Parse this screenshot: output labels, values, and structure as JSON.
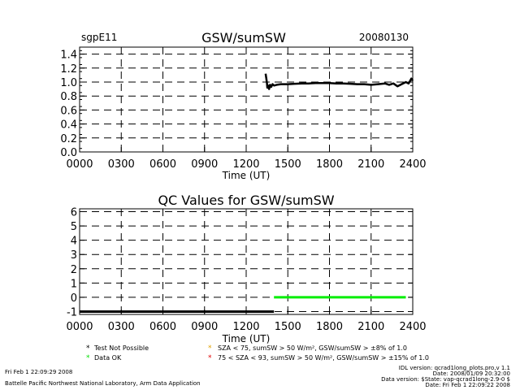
{
  "header": {
    "site": "sgpE11",
    "title": "GSW/sumSW",
    "date": "20080130"
  },
  "chart_data": [
    {
      "type": "line",
      "title": "GSW/sumSW",
      "xlabel": "Time (UT)",
      "ylabel": "",
      "xlim": [
        0,
        2400
      ],
      "ylim": [
        0.0,
        1.5
      ],
      "x_ticks": [
        "0000",
        "0300",
        "0600",
        "0900",
        "1200",
        "1500",
        "1800",
        "2100",
        "2400"
      ],
      "y_ticks": [
        "0.0",
        "0.2",
        "0.4",
        "0.6",
        "0.8",
        "1.0",
        "1.2",
        "1.4"
      ],
      "grid": true,
      "series": [
        {
          "color": "#000000",
          "points": [
            [
              1340,
              1.12
            ],
            [
              1345,
              1.05
            ],
            [
              1350,
              0.98
            ],
            [
              1352,
              0.92
            ],
            [
              1358,
              0.95
            ],
            [
              1365,
              0.9
            ],
            [
              1372,
              0.96
            ],
            [
              1380,
              0.93
            ],
            [
              1390,
              0.97
            ],
            [
              1400,
              0.95
            ],
            [
              1420,
              0.96
            ],
            [
              1450,
              0.97
            ],
            [
              1500,
              0.97
            ],
            [
              1550,
              0.975
            ],
            [
              1600,
              0.98
            ],
            [
              1650,
              0.98
            ],
            [
              1700,
              0.985
            ],
            [
              1750,
              0.985
            ],
            [
              1800,
              0.985
            ],
            [
              1850,
              0.98
            ],
            [
              1900,
              0.98
            ],
            [
              1950,
              0.975
            ],
            [
              2000,
              0.97
            ],
            [
              2050,
              0.97
            ],
            [
              2100,
              0.96
            ],
            [
              2150,
              0.97
            ],
            [
              2200,
              0.98
            ],
            [
              2230,
              0.96
            ],
            [
              2260,
              0.98
            ],
            [
              2290,
              0.94
            ],
            [
              2320,
              0.97
            ],
            [
              2350,
              1.0
            ],
            [
              2370,
              0.98
            ],
            [
              2390,
              1.05
            ],
            [
              2400,
              1.02
            ]
          ]
        }
      ]
    },
    {
      "type": "line",
      "title": "QC Values for GSW/sumSW",
      "xlabel": "Time (UT)",
      "ylabel": "",
      "xlim": [
        0,
        2400
      ],
      "ylim": [
        -1.2,
        6.2
      ],
      "x_ticks": [
        "0000",
        "0300",
        "0600",
        "0900",
        "1200",
        "1500",
        "1800",
        "2100",
        "2400"
      ],
      "y_ticks": [
        "-1",
        "0",
        "1",
        "2",
        "3",
        "4",
        "5",
        "6"
      ],
      "grid": true,
      "series": [
        {
          "color": "#000000",
          "points": [
            [
              0,
              -1
            ],
            [
              1400,
              -1
            ]
          ]
        },
        {
          "color": "#00ee00",
          "points": [
            [
              1400,
              0
            ],
            [
              2350,
              0
            ]
          ]
        }
      ]
    }
  ],
  "legend": [
    {
      "symbol": "*",
      "color": "#000000",
      "text": "Test Not Possible"
    },
    {
      "symbol": "*",
      "color": "#00dd00",
      "text": "Data OK"
    },
    {
      "symbol": "*",
      "color": "#e0a000",
      "text": "SZA < 75, sumSW > 50 W/m², GSW/sumSW > ±8% of 1.0"
    },
    {
      "symbol": "*",
      "color": "#e00000",
      "text": "75 < SZA < 93, sumSW > 50 W/m², GSW/sumSW > ±15% of 1.0"
    }
  ],
  "footer": {
    "left_date": "Fri Feb  1 22:09:29 2008",
    "left_org": "Battelle Pacific Northwest National Laboratory, Arm Data Application",
    "right_lines": [
      "IDL version: qcrad1long_plots.pro,v 1.1",
      "Date: 2008/01/09 20:32:00",
      "Data version: $State: vap-qcrad1long-2.9-0 $",
      "Date: Fri Feb  1 22:09:22 2008"
    ]
  }
}
